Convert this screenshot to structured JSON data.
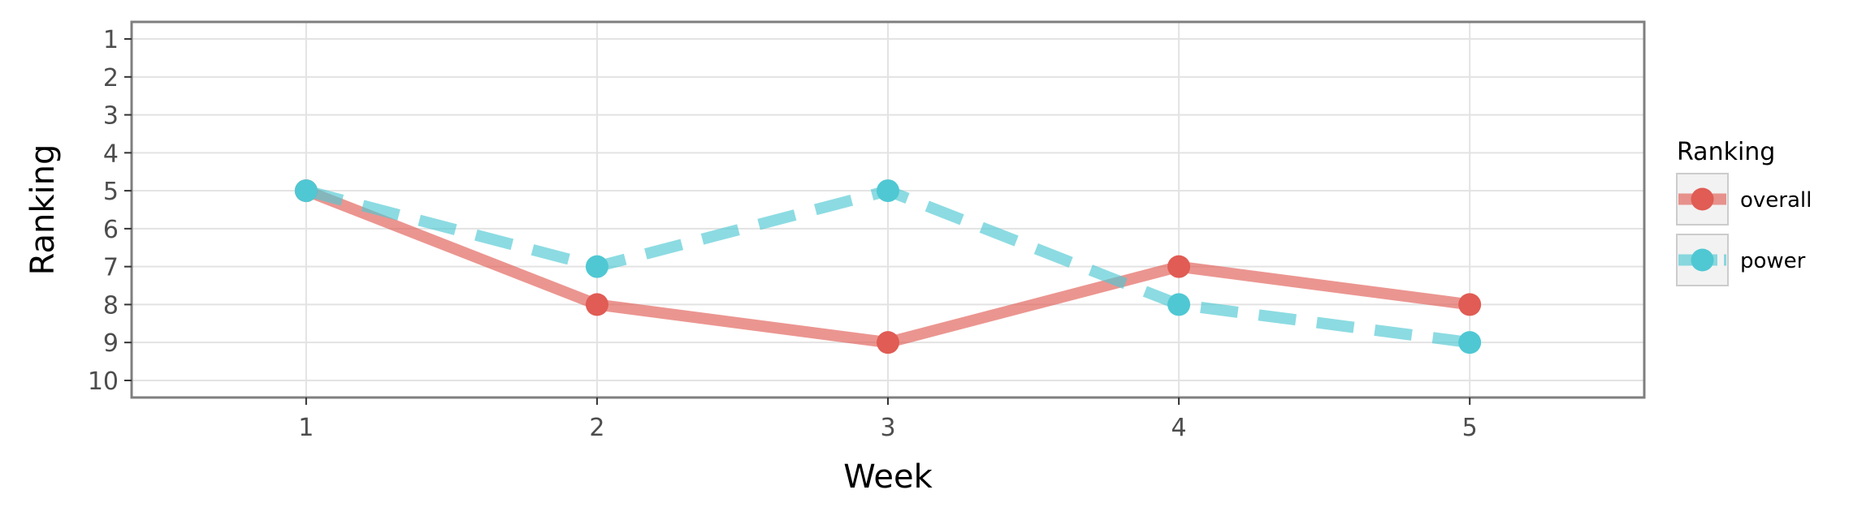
{
  "chart_data": {
    "type": "line",
    "xlabel": "Week",
    "ylabel": "Ranking",
    "x": [
      1,
      2,
      3,
      4,
      5
    ],
    "xlim": [
      0.4,
      5.6
    ],
    "ylim": [
      10.45,
      0.55
    ],
    "y_reversed": true,
    "x_ticks": [
      1,
      2,
      3,
      4,
      5
    ],
    "y_ticks": [
      1,
      2,
      3,
      4,
      5,
      6,
      7,
      8,
      9,
      10
    ],
    "grid": true,
    "legend": {
      "title": "Ranking",
      "position": "right"
    },
    "series": [
      {
        "name": "overall",
        "values": [
          5,
          8,
          9,
          7,
          8
        ],
        "color": "#e05c54",
        "line_style": "solid"
      },
      {
        "name": "power",
        "values": [
          5,
          7,
          5,
          8,
          9
        ],
        "color": "#4fc8d3",
        "line_style": "dashed"
      }
    ]
  }
}
